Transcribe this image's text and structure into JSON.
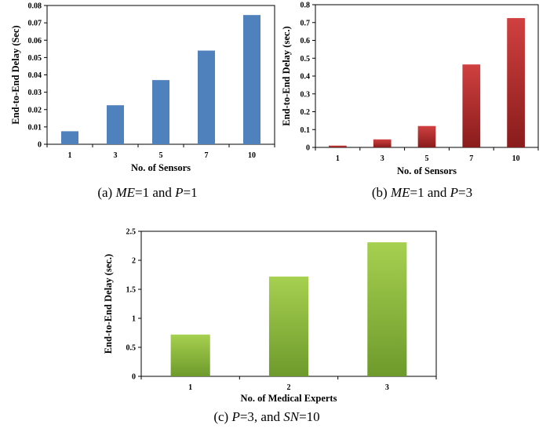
{
  "chart_data": [
    {
      "type": "bar",
      "categories": [
        "1",
        "3",
        "5",
        "7",
        "10"
      ],
      "values": [
        0.0075,
        0.0225,
        0.037,
        0.054,
        0.0745
      ],
      "xlabel": "No. of Sensors",
      "ylabel": "End-to-End Delay (Sec)",
      "ylim": [
        0,
        0.08
      ],
      "yticks": [
        "0",
        "0.01",
        "0.02",
        "0.03",
        "0.04",
        "0.05",
        "0.06",
        "0.07",
        "0.08"
      ],
      "bar_color": "#4f81bd",
      "grid": false
    },
    {
      "type": "bar",
      "categories": [
        "1",
        "3",
        "5",
        "7",
        "10"
      ],
      "values": [
        0.01,
        0.045,
        0.12,
        0.465,
        0.725
      ],
      "xlabel": "No. of Sensors",
      "ylabel": "End-to-End Delay (sec.)",
      "ylim": [
        0,
        0.8
      ],
      "yticks": [
        "0",
        "0.1",
        "0.2",
        "0.3",
        "0.4",
        "0.5",
        "0.6",
        "0.7",
        "0.8"
      ],
      "bar_color_top": "#d04040",
      "bar_color_bottom": "#8a1c1c",
      "grid": false
    },
    {
      "type": "bar",
      "categories": [
        "1",
        "2",
        "3"
      ],
      "values": [
        0.72,
        1.72,
        2.31
      ],
      "xlabel": "No. of Medical Experts",
      "ylabel": "End-to-End Delay (sec.)",
      "ylim": [
        0,
        2.5
      ],
      "yticks": [
        "0",
        "0.5",
        "1",
        "1.5",
        "2",
        "2.5"
      ],
      "bar_color_top": "#a6d04f",
      "bar_color_bottom": "#6e9a2c",
      "grid": false
    }
  ],
  "captions": {
    "a": {
      "prefix": "(a) ",
      "v1": "ME",
      "mid": "=1 and ",
      "v2": "P",
      "suffix": "=1"
    },
    "b": {
      "prefix": "(b) ",
      "v1": "ME",
      "mid": "=1 and ",
      "v2": "P",
      "suffix": "=3"
    },
    "c": {
      "prefix": "(c) ",
      "v1": "P",
      "mid": "=3, and ",
      "v2": "SN",
      "suffix": "=10"
    }
  }
}
